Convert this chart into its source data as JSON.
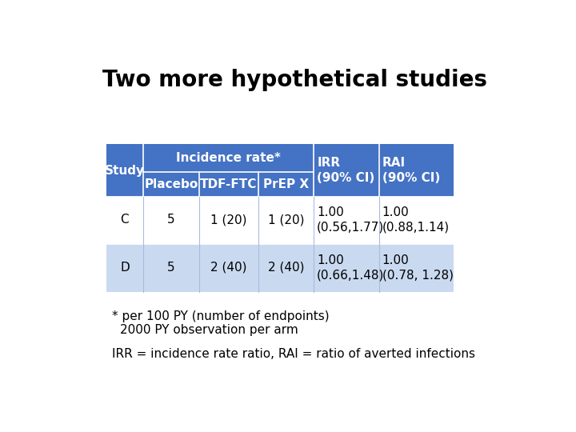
{
  "title": "Two more hypothetical studies",
  "title_fontsize": 20,
  "title_fontweight": "bold",
  "bg_color": "#ffffff",
  "header_dark": "#4472C4",
  "row_c_bg": "#ffffff",
  "row_d_bg": "#C9D9F0",
  "header_text_color": "#ffffff",
  "body_text_color": "#000000",
  "footnote1": "* per 100 PY (number of endpoints)",
  "footnote2": "2000 PY observation per arm",
  "footnote3": "IRR = incidence rate ratio, RAI = ratio of averted infections",
  "footnote_fontsize": 11
}
